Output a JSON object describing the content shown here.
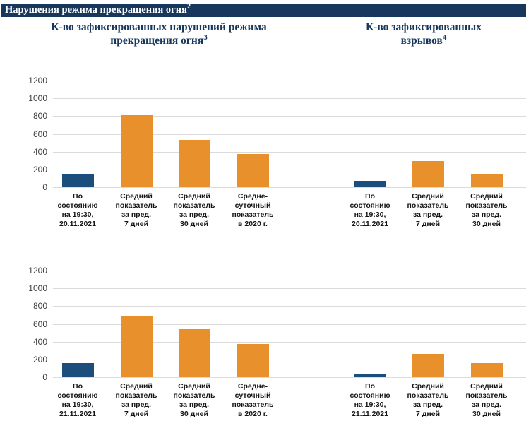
{
  "header": {
    "title": "Нарушения режима прекращения огня",
    "superscript": "2"
  },
  "colors": {
    "header_bg": "#17375D",
    "title_text": "#17375D",
    "current_day_bar": "#1B4E7C",
    "average_bar": "#E8912C",
    "gridline": "#DBDBDB"
  },
  "y_axis": {
    "ticks": [
      1200,
      1000,
      800,
      600,
      400,
      200,
      0
    ],
    "max": 1200
  },
  "chart_data": [
    {
      "type": "bar",
      "position": "top-left",
      "title": "К-во зафиксированных нарушений режима\nпрекращения огня",
      "title_superscript": "3",
      "categories": [
        "По\nсостоянию\nна 19:30,\n20.11.2021",
        "Средний\nпоказатель\nза пред.\n7 дней",
        "Средний\nпоказатель\nза пред.\n30 дней",
        "Средне-\nсуточный\nпоказатель\nв 2020 г."
      ],
      "values": [
        145,
        810,
        530,
        370
      ],
      "bar_colors": [
        "current_day_bar",
        "average_bar",
        "average_bar",
        "average_bar"
      ],
      "ylim": [
        0,
        1200
      ],
      "grid": true,
      "legend": "none"
    },
    {
      "type": "bar",
      "position": "top-right",
      "title": "К-во зафиксированных\nвзрывов",
      "title_superscript": "4",
      "categories": [
        "По\nсостоянию\nна 19:30,\n20.11.2021",
        "Средний\nпоказатель\nза пред.\n7 дней",
        "Средний\nпоказатель\nза пред.\n30 дней"
      ],
      "values": [
        75,
        295,
        150
      ],
      "bar_colors": [
        "current_day_bar",
        "average_bar",
        "average_bar"
      ],
      "ylim": [
        0,
        1200
      ],
      "grid": true,
      "legend": "none"
    },
    {
      "type": "bar",
      "position": "bottom-left",
      "title": "К-во зафиксированных нарушений режима\nпрекращения огня",
      "title_superscript": "3",
      "categories": [
        "По\nсостоянию\nна 19:30,\n21.11.2021",
        "Средний\nпоказатель\nза пред.\n7 дней",
        "Средний\nпоказатель\nза пред.\n30 дней",
        "Средне-\nсуточный\nпоказатель\nв 2020 г."
      ],
      "values": [
        160,
        690,
        540,
        370
      ],
      "bar_colors": [
        "current_day_bar",
        "average_bar",
        "average_bar",
        "average_bar"
      ],
      "ylim": [
        0,
        1200
      ],
      "grid": true,
      "legend": "none"
    },
    {
      "type": "bar",
      "position": "bottom-right",
      "title": "К-во зафиксированных\nвзрывов",
      "title_superscript": "4",
      "categories": [
        "По\nсостоянию\nна 19:30,\n21.11.2021",
        "Средний\nпоказатель\nза пред.\n7 дней",
        "Средний\nпоказатель\nза пред.\n30 дней"
      ],
      "values": [
        30,
        265,
        155
      ],
      "bar_colors": [
        "current_day_bar",
        "average_bar",
        "average_bar"
      ],
      "ylim": [
        0,
        1200
      ],
      "grid": true,
      "legend": "none"
    }
  ]
}
